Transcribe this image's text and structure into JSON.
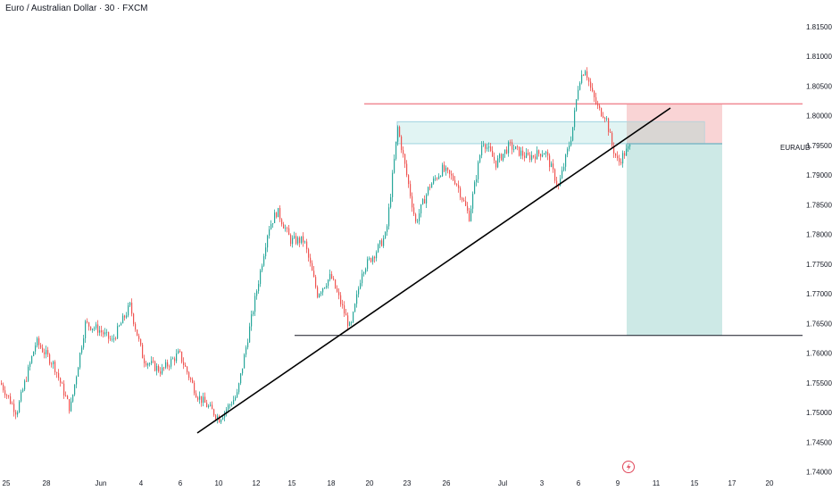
{
  "header": {
    "title": "Euro / Australian Dollar · 30 · FXCM"
  },
  "symbol_label": "EURAUD",
  "colors": {
    "up": "#26a69a",
    "down": "#ef5350",
    "target_zone": "#cde9e6",
    "stop_zone": "#f9d4d5",
    "zone_box": "#daf1f0",
    "zone_border": "#9fd3e0",
    "resistance_line": "#f08a94",
    "support_line": "#131722",
    "trendline": "#000000",
    "flash_icon": "#e0475a"
  },
  "icons": {
    "event_marker": "lightning-icon"
  },
  "chart_data": {
    "type": "candlestick",
    "title": "Euro / Australian Dollar · 30 · FXCM",
    "symbol": "EURAUD",
    "last_price": "1.79468",
    "ylim": [
      1.7368,
      1.8195
    ],
    "y_ticks": [
      "1.81500",
      "1.81000",
      "1.80500",
      "1.80000",
      "1.79500",
      "1.79000",
      "1.78500",
      "1.78000",
      "1.77500",
      "1.77000",
      "1.76500",
      "1.76000",
      "1.75500",
      "1.75000",
      "1.74500",
      "1.74000"
    ],
    "x_ticks": [
      "25",
      "28",
      "Jun",
      "4",
      "6",
      "10",
      "12",
      "15",
      "18",
      "20",
      "23",
      "26",
      "Jul",
      "3",
      "6",
      "9",
      "11",
      "15",
      "17",
      "20"
    ],
    "series": [
      {
        "name": "",
        "keypoints": [
          [
            0,
            1.755
          ],
          [
            18,
            1.75
          ],
          [
            40,
            1.762
          ],
          [
            60,
            1.758
          ],
          [
            78,
            1.7505
          ],
          [
            95,
            1.765
          ],
          [
            110,
            1.764
          ],
          [
            125,
            1.762
          ],
          [
            145,
            1.768
          ],
          [
            160,
            1.759
          ],
          [
            180,
            1.757
          ],
          [
            200,
            1.76
          ],
          [
            220,
            1.753
          ],
          [
            245,
            1.749
          ],
          [
            265,
            1.753
          ],
          [
            290,
            1.773
          ],
          [
            300,
            1.781
          ],
          [
            310,
            1.784
          ],
          [
            325,
            1.779
          ],
          [
            340,
            1.779
          ],
          [
            355,
            1.77
          ],
          [
            370,
            1.773
          ],
          [
            392,
            1.764
          ],
          [
            405,
            1.774
          ],
          [
            420,
            1.777
          ],
          [
            432,
            1.78
          ],
          [
            445,
            1.798
          ],
          [
            455,
            1.79
          ],
          [
            465,
            1.782
          ],
          [
            480,
            1.788
          ],
          [
            495,
            1.791
          ],
          [
            510,
            1.789
          ],
          [
            525,
            1.783
          ],
          [
            540,
            1.796
          ],
          [
            555,
            1.792
          ],
          [
            570,
            1.795
          ],
          [
            590,
            1.793
          ],
          [
            610,
            1.794
          ],
          [
            625,
            1.788
          ],
          [
            640,
            1.797
          ],
          [
            648,
            1.806
          ],
          [
            655,
            1.808
          ],
          [
            662,
            1.804
          ],
          [
            670,
            1.801
          ],
          [
            678,
            1.8
          ],
          [
            685,
            1.795
          ],
          [
            692,
            1.792
          ],
          [
            698,
            1.7935
          ],
          [
            705,
            1.7947
          ]
        ]
      }
    ],
    "annotations": {
      "resistance_level": 1.802,
      "support_level": 1.763,
      "supply_zone": [
        1.7953,
        1.799
      ],
      "entry": 1.7953,
      "stop_loss": 1.802,
      "take_profit": 1.763,
      "trendline": [
        [
          "from",
          1.744
        ],
        [
          "to",
          1.801
        ]
      ]
    }
  }
}
